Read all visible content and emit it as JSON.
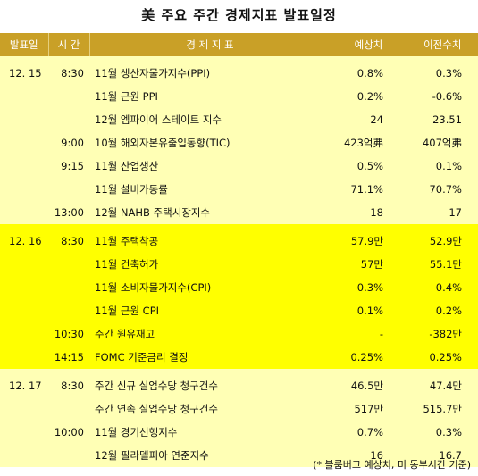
{
  "title": "美 주요 주간 경제지표 발표일정",
  "headers": {
    "date": "발표일",
    "time": "시 간",
    "indicator": "경 제 지 표",
    "forecast": "예상치",
    "previous": "이전수치"
  },
  "rows": [
    {
      "group": "g1",
      "first": true,
      "date": "12. 15",
      "time": "8:30",
      "indicator": "11월 생산자물가지수(PPI)",
      "forecast": "0.8%",
      "previous": "0.3%"
    },
    {
      "group": "g1",
      "first": false,
      "date": "",
      "time": "",
      "indicator": "11월 근원 PPI",
      "forecast": "0.2%",
      "previous": "-0.6%"
    },
    {
      "group": "g1",
      "first": false,
      "date": "",
      "time": "",
      "indicator": "12월 엠파이어 스테이트 지수",
      "forecast": "24",
      "previous": "23.51"
    },
    {
      "group": "g1",
      "first": false,
      "date": "",
      "time": "9:00",
      "indicator": "10월 해외자본유출입동향(TIC)",
      "forecast": "423억弗",
      "previous": "407억弗"
    },
    {
      "group": "g1",
      "first": false,
      "date": "",
      "time": "9:15",
      "indicator": "11월 산업생산",
      "forecast": "0.5%",
      "previous": "0.1%"
    },
    {
      "group": "g1",
      "first": false,
      "date": "",
      "time": "",
      "indicator": "11월 설비가동률",
      "forecast": "71.1%",
      "previous": "70.7%"
    },
    {
      "group": "g1",
      "first": false,
      "date": "",
      "time": "13:00",
      "indicator": "12월 NAHB 주택시장지수",
      "forecast": "18",
      "previous": "17"
    },
    {
      "group": "g2",
      "first": true,
      "date": "12. 16",
      "time": "8:30",
      "indicator": "11월 주택착공",
      "forecast": "57.9만",
      "previous": "52.9만"
    },
    {
      "group": "g2",
      "first": false,
      "date": "",
      "time": "",
      "indicator": "11월 건축허가",
      "forecast": "57만",
      "previous": "55.1만"
    },
    {
      "group": "g2",
      "first": false,
      "date": "",
      "time": "",
      "indicator": "11월 소비자물가지수(CPI)",
      "forecast": "0.3%",
      "previous": "0.4%"
    },
    {
      "group": "g2",
      "first": false,
      "date": "",
      "time": "",
      "indicator": "11월 근원 CPI",
      "forecast": "0.1%",
      "previous": "0.2%"
    },
    {
      "group": "g2",
      "first": false,
      "date": "",
      "time": "10:30",
      "indicator": "주간 원유재고",
      "forecast": "-",
      "previous": "-382만"
    },
    {
      "group": "g2",
      "first": false,
      "date": "",
      "time": "14:15",
      "indicator": "FOMC 기준금리 결정",
      "forecast": "0.25%",
      "previous": "0.25%"
    },
    {
      "group": "g3",
      "first": true,
      "date": "12. 17",
      "time": "8:30",
      "indicator": "주간 신규 실업수당 청구건수",
      "forecast": "46.5만",
      "previous": "47.4만"
    },
    {
      "group": "g3",
      "first": false,
      "date": "",
      "time": "",
      "indicator": "주간 연속 실업수당 청구건수",
      "forecast": "517만",
      "previous": "515.7만"
    },
    {
      "group": "g3",
      "first": false,
      "date": "",
      "time": "10:00",
      "indicator": "11월 경기선행지수",
      "forecast": "0.7%",
      "previous": "0.3%"
    },
    {
      "group": "g3",
      "first": false,
      "date": "",
      "time": "",
      "indicator": "12월 필라델피아 연준지수",
      "forecast": "16",
      "previous": "16.7"
    }
  ],
  "footnote": "(* 블룸버그 예상치, 미 동부시간 기준)",
  "colors": {
    "header_bg": "#c9a027",
    "band_light": "#ffffb5",
    "band_bright": "#ffff00"
  }
}
